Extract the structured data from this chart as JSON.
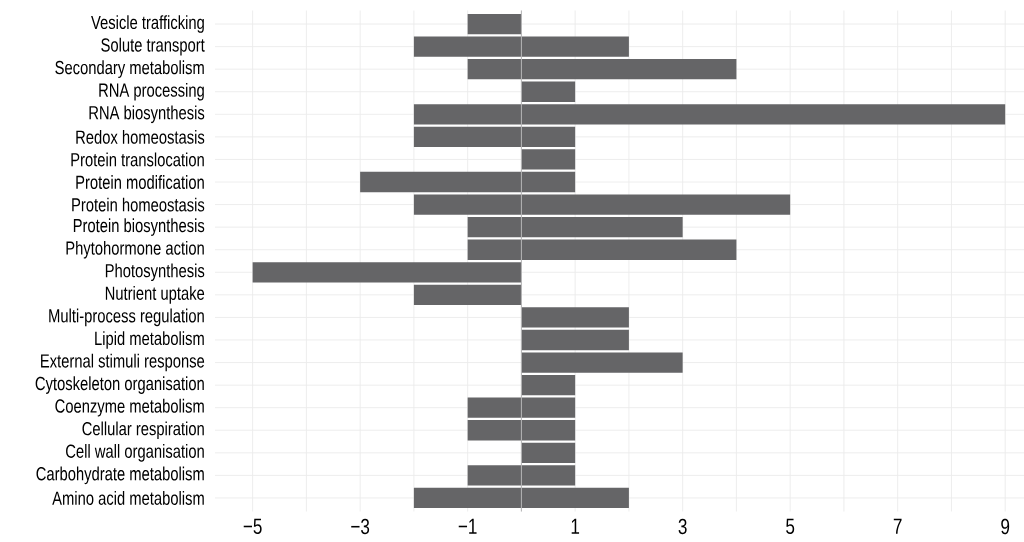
{
  "chart_data": {
    "type": "bar",
    "orientation": "horizontal",
    "stacked": true,
    "categories": [
      "Vesicle trafficking",
      "Solute transport",
      "Secondary metabolism",
      "RNA processing",
      "RNA biosynthesis",
      "Redox homeostasis",
      "Protein translocation",
      "Protein modification",
      "Protein homeostasis",
      "Protein biosynthesis",
      "Phytohormone action",
      "Photosynthesis",
      "Nutrient uptake",
      "Multi-process regulation",
      "Lipid metabolism",
      "External stimuli response",
      "Cytoskeleton organisation",
      "Coenzyme metabolism",
      "Cellular respiration",
      "Cell wall organisation",
      "Carbohydrate metabolism",
      "Amino acid metabolism"
    ],
    "series": [
      {
        "color": "#656567",
        "values": [
          -1,
          -2,
          -1,
          null,
          -2,
          -2,
          null,
          -3,
          -2,
          -1,
          -1,
          -5,
          -2,
          null,
          null,
          null,
          null,
          -1,
          -1,
          null,
          -1,
          -2
        ]
      },
      {
        "color": "#656567",
        "values": [
          null,
          2,
          4,
          1,
          9,
          1,
          1,
          1,
          5,
          3,
          4,
          null,
          null,
          2,
          2,
          3,
          1,
          1,
          1,
          1,
          1,
          2
        ]
      }
    ],
    "xlim": [
      -5.7,
      9.35
    ],
    "xticks": [
      {
        "value": -5,
        "label": "−5"
      },
      {
        "value": -4,
        "label": null
      },
      {
        "value": -3,
        "label": "−3"
      },
      {
        "value": -2,
        "label": null
      },
      {
        "value": -1,
        "label": "−1"
      },
      {
        "value": 0,
        "label": null
      },
      1,
      {
        "value": 2,
        "label": null
      },
      3,
      {
        "value": 4,
        "label": null
      },
      5,
      {
        "value": 6,
        "label": null
      },
      7,
      {
        "value": 8,
        "label": null
      },
      9
    ],
    "grid": true,
    "ref_lines": [
      {
        "axis": "x",
        "value": 0,
        "color": "#b3b3b5"
      }
    ]
  }
}
